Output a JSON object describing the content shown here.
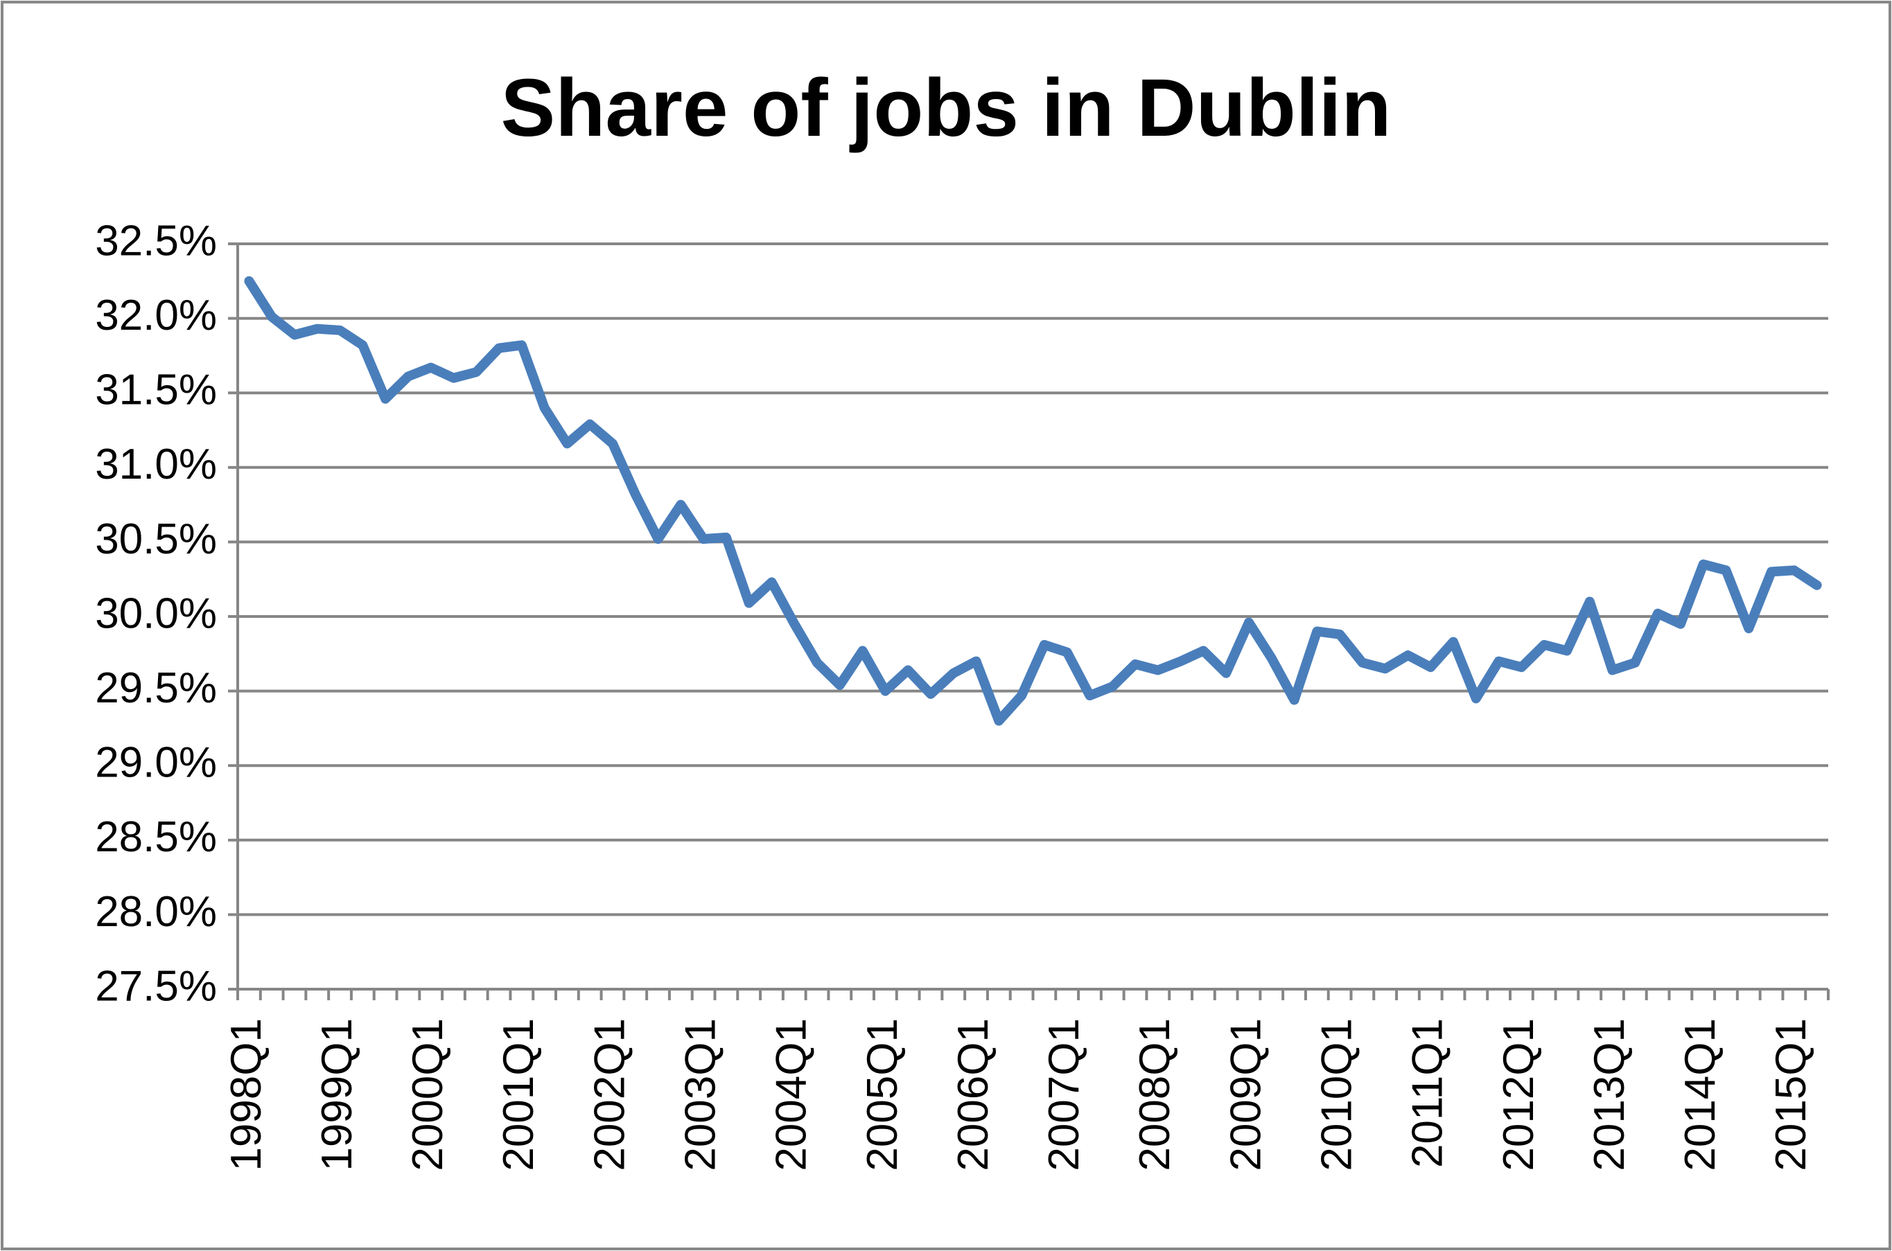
{
  "chart_data": {
    "type": "line",
    "title": "Share of jobs in Dublin",
    "categories": [
      "1998Q1",
      null,
      null,
      null,
      "1999Q1",
      null,
      null,
      null,
      "2000Q1",
      null,
      null,
      null,
      "2001Q1",
      null,
      null,
      null,
      "2002Q1",
      null,
      null,
      null,
      "2003Q1",
      null,
      null,
      null,
      "2004Q1",
      null,
      null,
      null,
      "2005Q1",
      null,
      null,
      null,
      "2006Q1",
      null,
      null,
      null,
      "2007Q1",
      null,
      null,
      null,
      "2008Q1",
      null,
      null,
      null,
      "2009Q1",
      null,
      null,
      null,
      "2010Q1",
      null,
      null,
      null,
      "2011Q1",
      null,
      null,
      null,
      "2012Q1",
      null,
      null,
      null,
      "2013Q1",
      null,
      null,
      null,
      "2014Q1",
      null,
      null,
      null,
      "2015Q1",
      null
    ],
    "values": [
      32.25,
      32.01,
      31.89,
      31.93,
      31.92,
      31.82,
      31.46,
      31.61,
      31.67,
      31.6,
      31.64,
      31.8,
      31.82,
      31.4,
      31.16,
      31.29,
      31.16,
      30.82,
      30.52,
      30.75,
      30.52,
      30.53,
      30.09,
      30.23,
      29.95,
      29.69,
      29.54,
      29.77,
      29.5,
      29.64,
      29.48,
      29.62,
      29.7,
      29.3,
      29.47,
      29.81,
      29.76,
      29.47,
      29.53,
      29.68,
      29.64,
      29.7,
      29.77,
      29.62,
      29.96,
      29.72,
      29.44,
      29.9,
      29.88,
      29.69,
      29.65,
      29.74,
      29.66,
      29.83,
      29.45,
      29.7,
      29.66,
      29.81,
      29.77,
      30.1,
      29.64,
      29.69,
      30.02,
      29.95,
      30.35,
      30.31,
      29.92,
      30.3,
      30.31,
      30.21
    ],
    "color": "#4a7ebb",
    "ylim": [
      27.5,
      32.5
    ],
    "yticks": [
      {
        "value": 27.5,
        "label": "27.5%"
      },
      {
        "value": 28.0,
        "label": "28.0%"
      },
      {
        "value": 28.5,
        "label": "28.5%"
      },
      {
        "value": 29.0,
        "label": "29.0%"
      },
      {
        "value": 29.5,
        "label": "29.5%"
      },
      {
        "value": 30.0,
        "label": "30.0%"
      },
      {
        "value": 30.5,
        "label": "30.5%"
      },
      {
        "value": 31.0,
        "label": "31.0%"
      },
      {
        "value": 31.5,
        "label": "31.5%"
      },
      {
        "value": 32.0,
        "label": "32.0%"
      },
      {
        "value": 32.5,
        "label": "32.5%"
      }
    ],
    "grid": true
  }
}
